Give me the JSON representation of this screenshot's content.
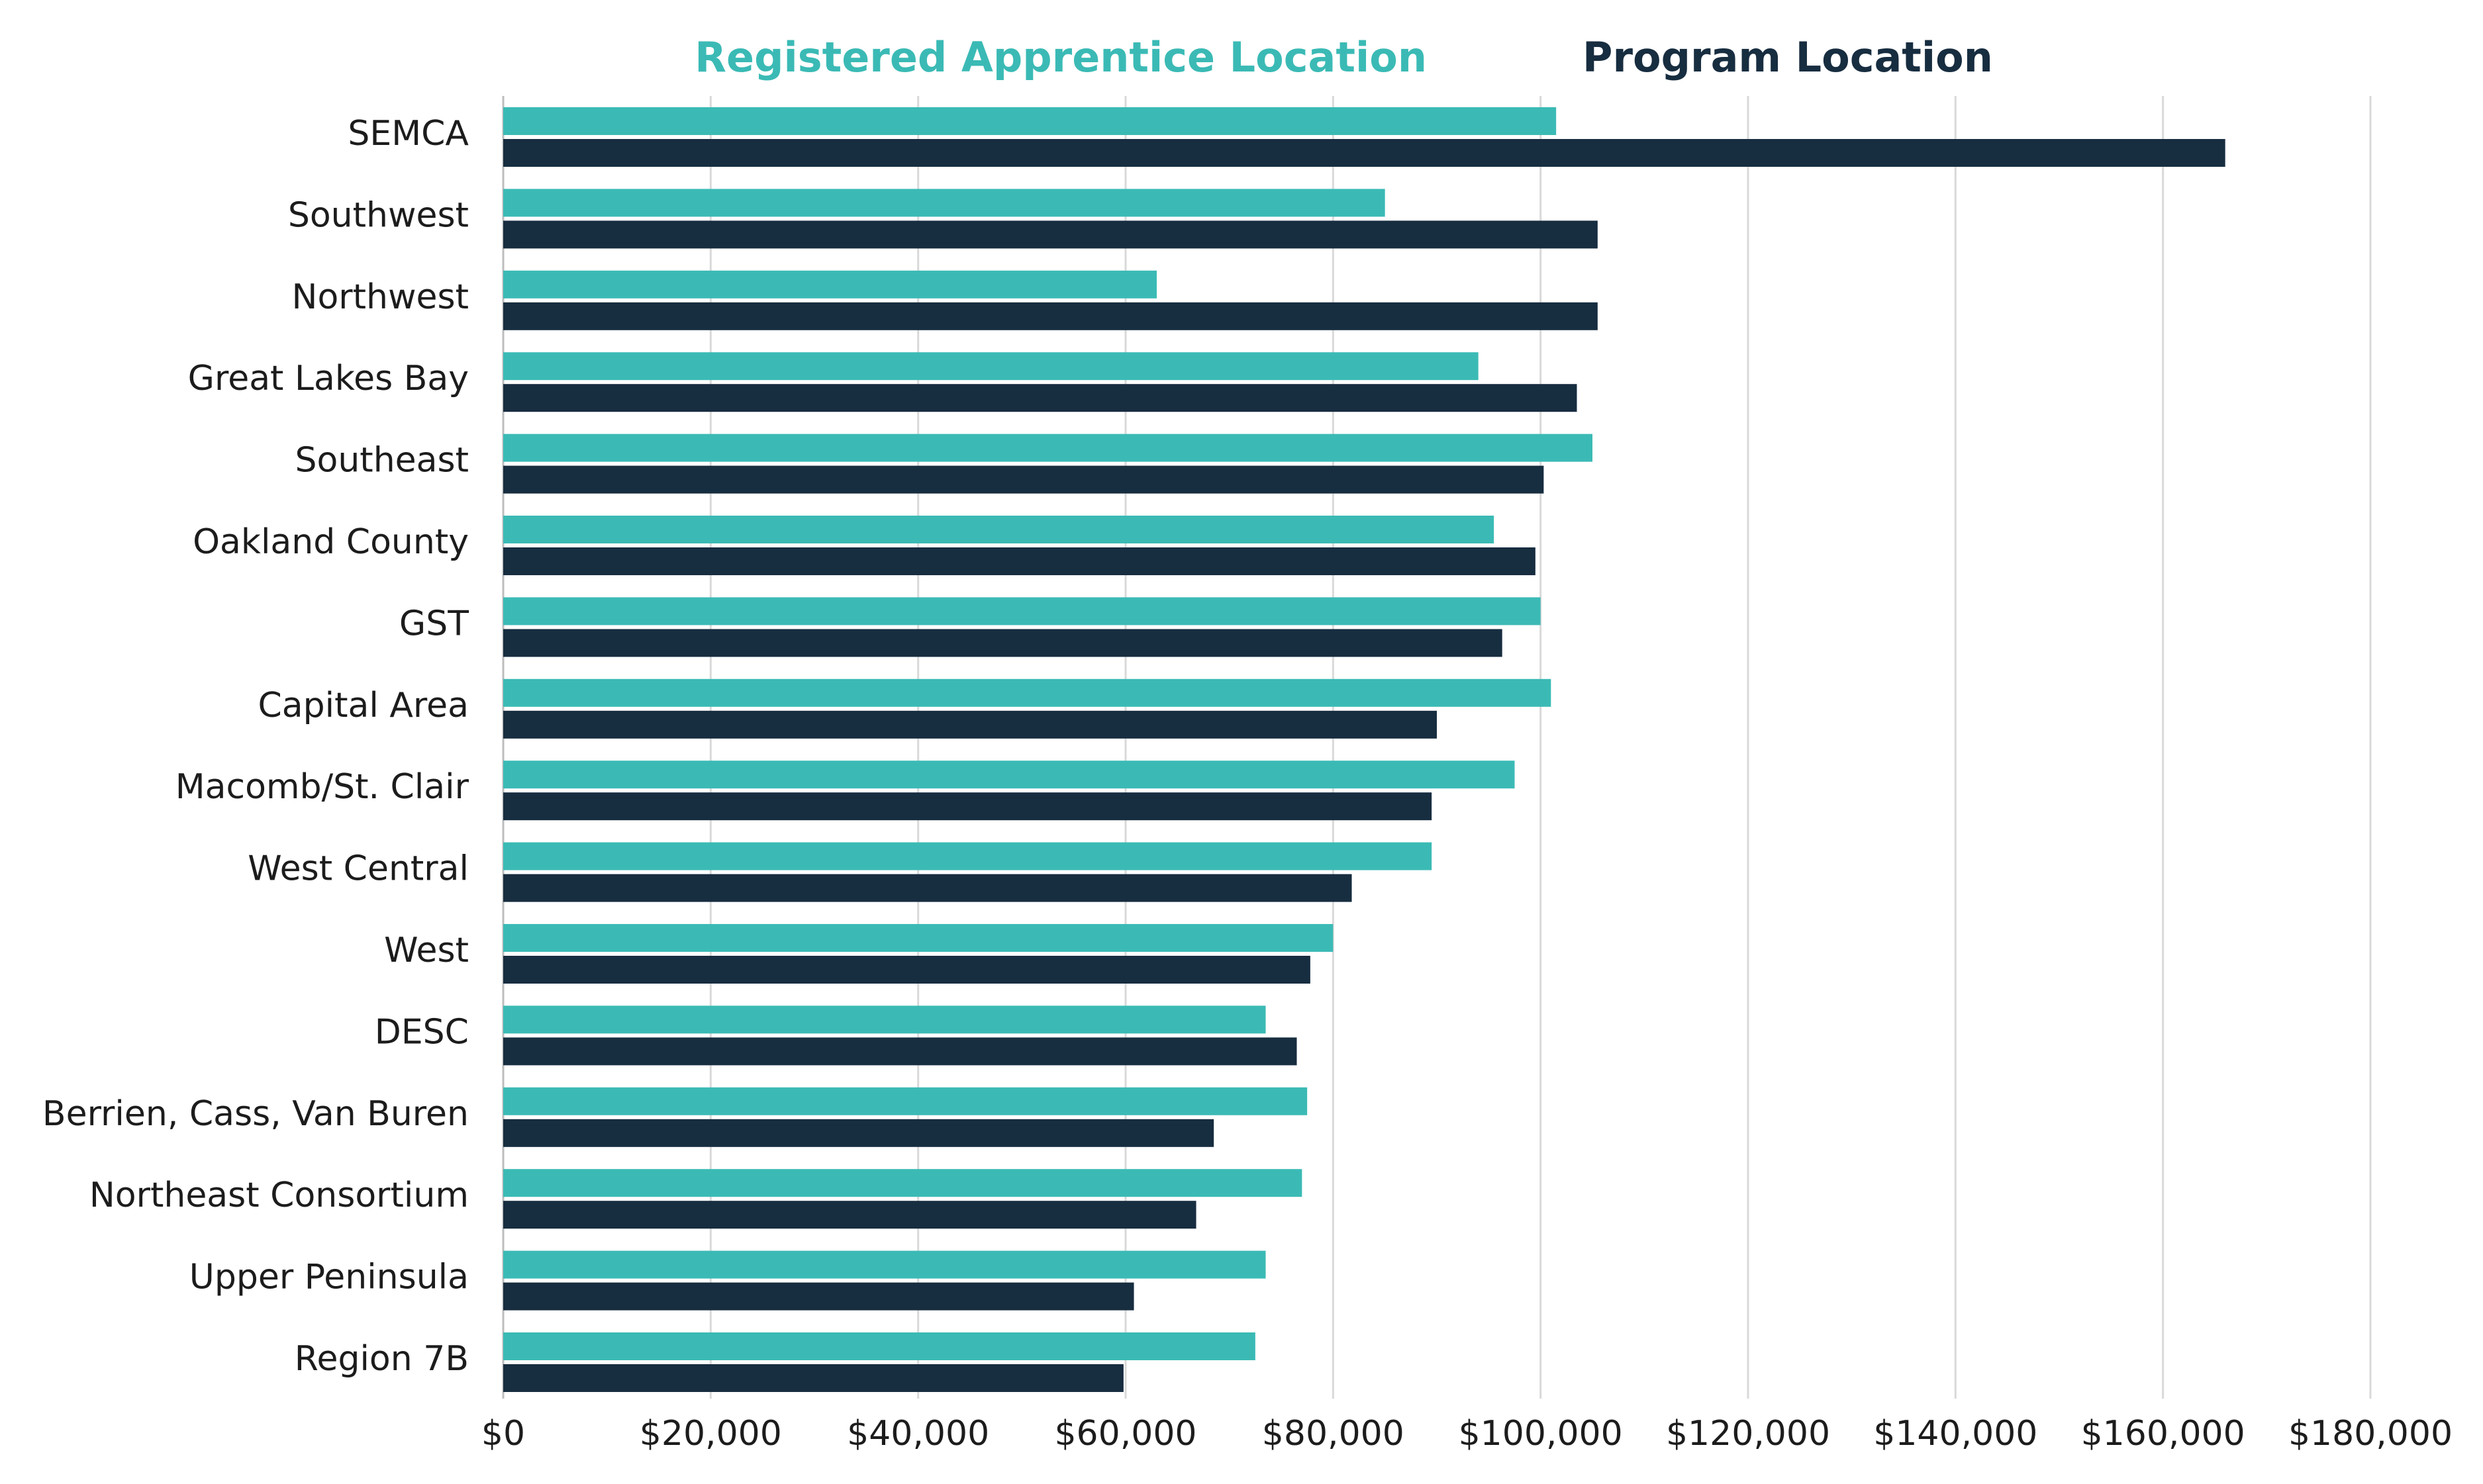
{
  "chart_data": {
    "type": "bar",
    "orientation": "horizontal",
    "title": "",
    "xlabel": "",
    "ylabel": "",
    "categories": [
      "SEMCA",
      "Southwest",
      "Northwest",
      "Great Lakes Bay",
      "Southeast",
      "Oakland County",
      "GST",
      "Capital Area",
      "Macomb/St. Clair",
      "West Central",
      "West",
      "DESC",
      "Berrien, Cass, Van Buren",
      "Northeast Consortium",
      "Upper Peninsula",
      "Region 7B"
    ],
    "series": [
      {
        "name": "Registered Apprentice Location",
        "color": "#3bbab5",
        "values": [
          101500,
          85000,
          63000,
          94000,
          105000,
          95500,
          100000,
          101000,
          97500,
          89500,
          80000,
          73500,
          77500,
          77000,
          73500,
          72500
        ]
      },
      {
        "name": "Program Location",
        "color": "#172d40",
        "values": [
          166000,
          105500,
          105500,
          103500,
          100300,
          99500,
          96300,
          90000,
          89500,
          81800,
          77800,
          76500,
          68500,
          66800,
          60800,
          59800
        ]
      }
    ],
    "xlim": [
      0,
      180000
    ],
    "xticks": [
      0,
      20000,
      40000,
      60000,
      80000,
      100000,
      120000,
      140000,
      160000,
      180000
    ],
    "xtick_labels": [
      "$0",
      "$20,000",
      "$40,000",
      "$60,000",
      "$80,000",
      "$100,000",
      "$120,000",
      "$140,000",
      "$160,000",
      "$180,000"
    ],
    "grid": true,
    "legend_position": "top-center"
  }
}
